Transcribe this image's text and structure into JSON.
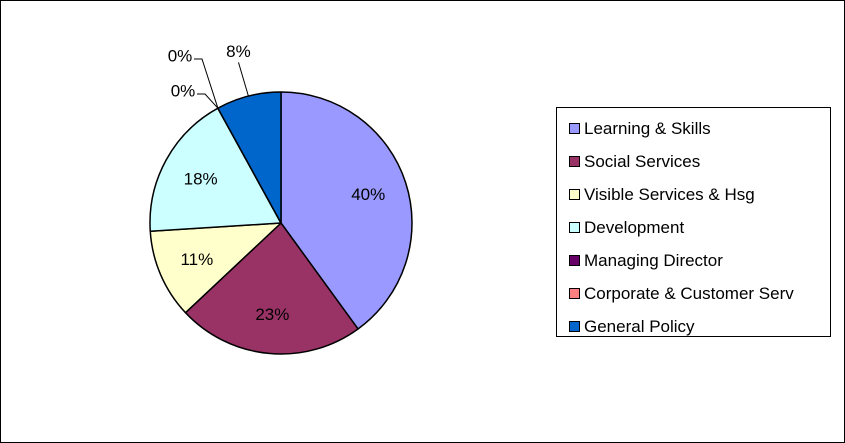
{
  "chart_data": {
    "type": "pie",
    "title": "",
    "legend_position": "right",
    "slices": [
      {
        "label": "Learning & Skills",
        "value": 40,
        "value_label": "40%",
        "color": "#9999FF"
      },
      {
        "label": "Social Services",
        "value": 23,
        "value_label": "23%",
        "color": "#993366"
      },
      {
        "label": "Visible Services & Hsg",
        "value": 11,
        "value_label": "11%",
        "color": "#FFFFCC"
      },
      {
        "label": "Development",
        "value": 18,
        "value_label": "18%",
        "color": "#CCFFFF"
      },
      {
        "label": "Managing Director",
        "value": 0,
        "value_label": "0%",
        "color": "#660066"
      },
      {
        "label": "Corporate & Customer Serv",
        "value": 0,
        "value_label": "0%",
        "color": "#FF8080"
      },
      {
        "label": "General Policy",
        "value": 8,
        "value_label": "8%",
        "color": "#0066CC"
      }
    ]
  }
}
